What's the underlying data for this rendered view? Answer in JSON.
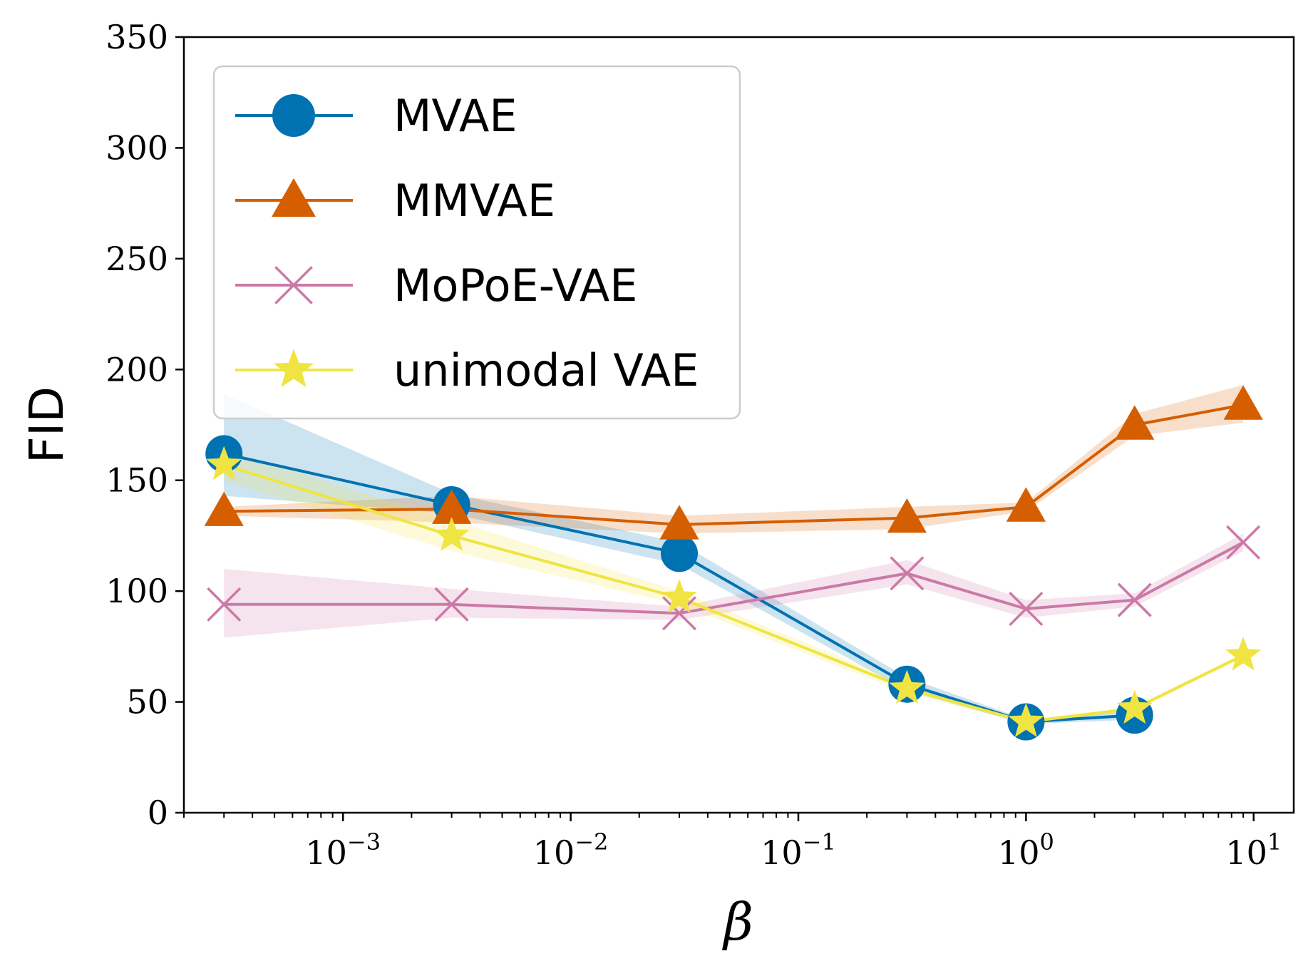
{
  "chart_data": {
    "type": "line",
    "title": "",
    "xlabel": "β",
    "ylabel": "FID",
    "xscale": "log",
    "ylim": [
      0,
      350
    ],
    "yticks": [
      0,
      50,
      100,
      150,
      200,
      250,
      300,
      350
    ],
    "xticks": [
      {
        "base": "10",
        "exp": "−3",
        "value": 0.001
      },
      {
        "base": "10",
        "exp": "−2",
        "value": 0.01
      },
      {
        "base": "10",
        "exp": "−1",
        "value": 0.1
      },
      {
        "base": "10",
        "exp": "0",
        "value": 1
      },
      {
        "base": "10",
        "exp": "1",
        "value": 10
      }
    ],
    "legend_position": "top-left",
    "series": [
      {
        "name": "MVAE",
        "color": "#0072b2",
        "marker": "circle",
        "x": [
          0.0003,
          0.003,
          0.03,
          0.3,
          1,
          3
        ],
        "y": [
          162,
          139,
          117,
          58,
          41,
          44
        ],
        "lower": [
          143,
          135,
          112,
          55,
          40,
          42
        ],
        "upper": [
          189,
          144,
          122,
          61,
          42,
          46
        ]
      },
      {
        "name": "MMVAE",
        "color": "#d55e00",
        "marker": "triangle",
        "x": [
          0.0003,
          0.003,
          0.03,
          0.3,
          1,
          3,
          9
        ],
        "y": [
          136,
          137,
          130,
          133,
          138,
          175,
          184
        ],
        "lower": [
          134,
          131,
          126,
          128,
          136,
          170,
          176
        ],
        "upper": [
          138,
          143,
          134,
          138,
          140,
          180,
          193
        ]
      },
      {
        "name": "MoPoE-VAE",
        "color": "#cc79a7",
        "marker": "x",
        "x": [
          0.0003,
          0.003,
          0.03,
          0.3,
          1,
          3,
          9
        ],
        "y": [
          94,
          94,
          90,
          108,
          92,
          96,
          122
        ],
        "lower": [
          79,
          88,
          87,
          103,
          88,
          93,
          118
        ],
        "upper": [
          110,
          101,
          93,
          114,
          96,
          99,
          126
        ]
      },
      {
        "name": "unimodal VAE",
        "color": "#f0e442",
        "marker": "star",
        "x": [
          0.0003,
          0.003,
          0.03,
          0.3,
          1,
          3,
          9
        ],
        "y": [
          157,
          125,
          97,
          56,
          41,
          47,
          71
        ],
        "lower": [
          150,
          118,
          94,
          54,
          40,
          46,
          70
        ],
        "upper": [
          164,
          132,
          100,
          58,
          42,
          48,
          72
        ]
      }
    ]
  }
}
